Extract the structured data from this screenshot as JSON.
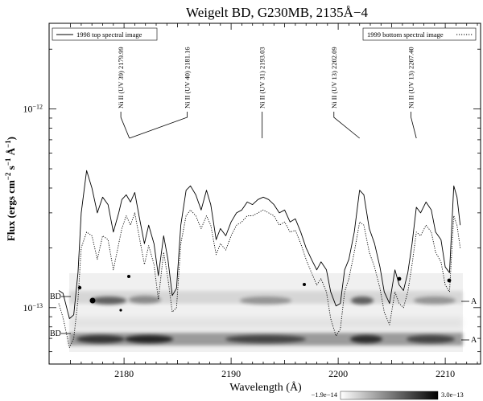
{
  "chart_data": {
    "type": "line",
    "title": "Weigelt BD, G230MB, 2135Å−4",
    "xlabel": "Wavelength (Å)",
    "ylabel_main": "Flux (ergs cm",
    "ylabel_sup1": "−2",
    "ylabel_s": " s",
    "ylabel_sup2": "−1",
    "ylabel_a": " Å",
    "ylabel_sup3": "−1",
    "ylabel_close": ")",
    "yscale": "log",
    "xlim": [
      2173.0,
      2213.3
    ],
    "ylim": [
      5.2e-14,
      2.7e-12
    ],
    "x_ticks": [
      2180,
      2190,
      2200,
      2210
    ],
    "y_tick_base": "10",
    "y_ticks": [
      {
        "value": 1e-12,
        "exp": "−12"
      },
      {
        "value": 1e-13,
        "exp": "−13"
      }
    ],
    "legend": [
      {
        "label": "1998 top spectral image",
        "style": "solid",
        "placement": "top-left"
      },
      {
        "label": "1999 bottom spectral image",
        "style": "dotted",
        "placement": "top-right"
      }
    ],
    "line_labels": [
      {
        "text": "Ni II (UV 39) 2179.99",
        "text_x": 2179.7,
        "target_x": 2180.5
      },
      {
        "text": "Ni II (UV 40) 2181.16",
        "text_x": 2185.9,
        "target_x": 2180.5
      },
      {
        "text": "Ni II (UV 31) 2193.03",
        "text_x": 2192.9,
        "target_x": 2192.9
      },
      {
        "text": "Ni II  (UV 13) 2202.09",
        "text_x": 2199.6,
        "target_x": 2202.0
      },
      {
        "text": "Ni II  (UV 13) 2207.40",
        "text_x": 2206.8,
        "target_x": 2207.3
      }
    ],
    "series": [
      {
        "name": "1998 top spectral image",
        "style": "solid",
        "x": [
          2173.9,
          2174.3,
          2174.9,
          2175.3,
          2175.7,
          2176.0,
          2176.5,
          2177.0,
          2177.5,
          2178.0,
          2178.5,
          2179.0,
          2179.5,
          2179.8,
          2180.2,
          2180.6,
          2181.0,
          2181.4,
          2181.9,
          2182.3,
          2182.8,
          2183.2,
          2183.7,
          2184.1,
          2184.5,
          2184.9,
          2185.3,
          2185.8,
          2186.2,
          2186.7,
          2187.2,
          2187.7,
          2188.1,
          2188.6,
          2189.0,
          2189.5,
          2190.0,
          2190.5,
          2191.0,
          2191.5,
          2192.0,
          2192.5,
          2193.0,
          2193.5,
          2194.0,
          2194.5,
          2195.0,
          2195.5,
          2196.0,
          2196.5,
          2197.0,
          2197.5,
          2198.0,
          2198.4,
          2198.9,
          2199.3,
          2199.8,
          2200.2,
          2200.6,
          2201.0,
          2201.5,
          2202.0,
          2202.4,
          2202.9,
          2203.4,
          2203.9,
          2204.3,
          2204.8,
          2205.3,
          2205.7,
          2206.1,
          2206.5,
          2206.9,
          2207.3,
          2207.7,
          2208.2,
          2208.7,
          2209.1,
          2209.6,
          2210.0,
          2210.4,
          2210.8,
          2211.1,
          2211.4
        ],
        "y": [
          1.22e-13,
          1.18e-13,
          8.8e-14,
          9.2e-14,
          1.5e-13,
          3e-13,
          4.9e-13,
          4e-13,
          3e-13,
          3.6e-13,
          3.3e-13,
          2.4e-13,
          3e-13,
          3.5e-13,
          3.7e-13,
          3.4e-13,
          3.8e-13,
          2.9e-13,
          2.1e-13,
          2.6e-13,
          2.1e-13,
          1.45e-13,
          2.3e-13,
          1.75e-13,
          1.15e-13,
          1.25e-13,
          2.6e-13,
          3.9e-13,
          4.1e-13,
          3.7e-13,
          3.1e-13,
          3.9e-13,
          3.3e-13,
          2.2e-13,
          2.5e-13,
          2.3e-13,
          2.7e-13,
          3e-13,
          3.1e-13,
          3.4e-13,
          3.3e-13,
          3.5e-13,
          3.6e-13,
          3.5e-13,
          3.3e-13,
          3e-13,
          3.1e-13,
          2.7e-13,
          2.8e-13,
          2.4e-13,
          2e-13,
          1.75e-13,
          1.55e-13,
          1.7e-13,
          1.55e-13,
          1.2e-13,
          1.02e-13,
          1.05e-13,
          1.55e-13,
          1.75e-13,
          2.4e-13,
          3.9e-13,
          3.7e-13,
          2.5e-13,
          2.1e-13,
          1.6e-13,
          1.2e-13,
          1.05e-13,
          1.55e-13,
          1.3e-13,
          1.22e-13,
          1.5e-13,
          2.1e-13,
          3.2e-13,
          3e-13,
          3.4e-13,
          3.1e-13,
          2.4e-13,
          2.2e-13,
          1.6e-13,
          1.5e-13,
          4.1e-13,
          3.6e-13,
          2.6e-13
        ]
      },
      {
        "name": "1999 bottom spectral image",
        "style": "dotted",
        "x": [
          2173.9,
          2174.3,
          2174.9,
          2175.3,
          2175.7,
          2176.0,
          2176.5,
          2177.0,
          2177.5,
          2178.0,
          2178.5,
          2179.0,
          2179.5,
          2179.8,
          2180.2,
          2180.6,
          2181.0,
          2181.4,
          2181.9,
          2182.3,
          2182.8,
          2183.2,
          2183.7,
          2184.1,
          2184.5,
          2184.9,
          2185.3,
          2185.8,
          2186.2,
          2186.7,
          2187.2,
          2187.7,
          2188.1,
          2188.6,
          2189.0,
          2189.5,
          2190.0,
          2190.5,
          2191.0,
          2191.5,
          2192.0,
          2192.5,
          2193.0,
          2193.5,
          2194.0,
          2194.5,
          2195.0,
          2195.5,
          2196.0,
          2196.5,
          2197.0,
          2197.5,
          2198.0,
          2198.4,
          2198.9,
          2199.3,
          2199.8,
          2200.2,
          2200.6,
          2201.0,
          2201.5,
          2202.0,
          2202.4,
          2202.9,
          2203.4,
          2203.9,
          2204.3,
          2204.8,
          2205.3,
          2205.7,
          2206.1,
          2206.5,
          2206.9,
          2207.3,
          2207.7,
          2208.2,
          2208.7,
          2209.1,
          2209.6,
          2210.0,
          2210.4,
          2210.8,
          2211.1,
          2211.4
        ],
        "y": [
          1.05e-13,
          8.9e-14,
          6.3e-14,
          7e-14,
          1.1e-13,
          2e-13,
          2.4e-13,
          2.3e-13,
          1.75e-13,
          2.3e-13,
          2.2e-13,
          1.55e-13,
          2.1e-13,
          2.5e-13,
          2.9e-13,
          2.6e-13,
          3e-13,
          2.3e-13,
          1.65e-13,
          2.05e-13,
          1.65e-13,
          1.1e-13,
          1.9e-13,
          1.4e-13,
          9.5e-14,
          1e-13,
          2.1e-13,
          2.9e-13,
          3.1e-13,
          2.9e-13,
          2.5e-13,
          2.9e-13,
          2.6e-13,
          1.85e-13,
          2.1e-13,
          1.95e-13,
          2.3e-13,
          2.6e-13,
          2.7e-13,
          2.9e-13,
          2.9e-13,
          3e-13,
          3.1e-13,
          3e-13,
          2.9e-13,
          2.6e-13,
          2.7e-13,
          2.4e-13,
          2.45e-13,
          2.1e-13,
          1.75e-13,
          1.5e-13,
          1.3e-13,
          1.4e-13,
          1.2e-13,
          8.8e-14,
          7.2e-14,
          7.8e-14,
          1.2e-13,
          1.4e-13,
          1.9e-13,
          2.7e-13,
          2.6e-13,
          1.9e-13,
          1.6e-13,
          1.25e-13,
          9.5e-14,
          8.2e-14,
          1.2e-13,
          1.05e-13,
          1e-13,
          1.2e-13,
          1.65e-13,
          2.4e-13,
          2.3e-13,
          2.6e-13,
          2.4e-13,
          1.9e-13,
          1.7e-13,
          1.3e-13,
          1.2e-13,
          2.9e-13,
          2.6e-13,
          2e-13
        ]
      }
    ],
    "image_panel": {
      "side_labels_left": [
        "BD",
        "BD"
      ],
      "side_labels_right": [
        "A",
        "A"
      ],
      "colorbar_min": "−1.9e−14",
      "colorbar_max": "3.0e−13",
      "colorbar_colors": [
        "#ffffff",
        "#000000"
      ]
    }
  }
}
